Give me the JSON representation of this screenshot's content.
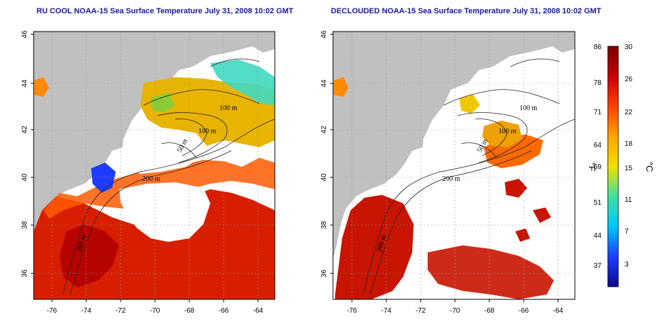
{
  "panels": [
    {
      "title": "RU COOL NOAA-15 Sea Surface Temperature July 31, 2008 10:02 GMT",
      "isobaths": [
        "100 m",
        "100 m",
        "50 m",
        "200 m",
        "200 m"
      ]
    },
    {
      "title": "DECLOUDED NOAA-15 Sea Surface Temperature July 31, 2008 10:02 GMT",
      "isobaths": [
        "100 m",
        "100 m",
        "50 m",
        "200 m",
        "200 m"
      ]
    }
  ],
  "axes": {
    "lon_ticks": [
      "-76",
      "-74",
      "-72",
      "-70",
      "-68",
      "-66",
      "-64"
    ],
    "lat_ticks": [
      "46",
      "44",
      "42",
      "40",
      "38",
      "36"
    ]
  },
  "colorbar": {
    "fahrenheit_label": "°F",
    "celsius_label": "°C",
    "f_ticks": [
      "86",
      "78",
      "71",
      "64",
      "59",
      "51",
      "44",
      "37"
    ],
    "c_ticks": [
      "30",
      "26",
      "22",
      "18",
      "15",
      "11",
      "7",
      "3"
    ],
    "colors": [
      "#0a0a8c",
      "#1e3cff",
      "#00c8ff",
      "#40e0a0",
      "#f0e000",
      "#ffa500",
      "#ff4000",
      "#c80000",
      "#7a0000"
    ]
  },
  "colors": {
    "land": "#c0c0c0",
    "cloud_mask": "#ffffff",
    "contour": "#222222",
    "grid": "#9a9a9a",
    "title": "#1a1a9c"
  }
}
